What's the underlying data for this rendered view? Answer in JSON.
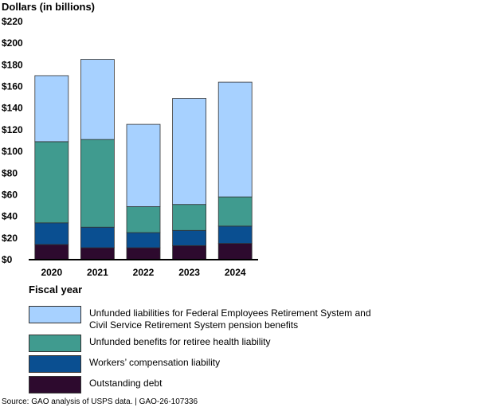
{
  "chart_data": {
    "type": "bar",
    "stacked": true,
    "ylabel": "Dollars (in billions)",
    "xlabel": "Fiscal year",
    "ylim": [
      0,
      220
    ],
    "yticks": [
      0,
      20,
      40,
      60,
      80,
      100,
      120,
      140,
      160,
      180,
      200,
      220
    ],
    "ytick_labels": [
      "$0",
      "$20",
      "$40",
      "$60",
      "$80",
      "$100",
      "$120",
      "$140",
      "$160",
      "$180",
      "$200",
      "$220"
    ],
    "categories": [
      "2020",
      "2021",
      "2022",
      "2023",
      "2024"
    ],
    "series": [
      {
        "name": "Outstanding debt",
        "color": "#2d0a2e",
        "values": [
          14,
          11,
          11,
          13,
          15
        ]
      },
      {
        "name": "Workers’ compensation liability",
        "color": "#0a4f91",
        "values": [
          20,
          19,
          14,
          14,
          16
        ]
      },
      {
        "name": "Unfunded benefits for retiree health liability",
        "color": "#409b8f",
        "values": [
          75,
          81,
          24,
          24,
          27
        ]
      },
      {
        "name": "Unfunded liabilities for Federal Employees Retirement System and Civil Service Retirement System pension benefits",
        "color": "#a7d1ff",
        "values": [
          61,
          74,
          76,
          98,
          106
        ]
      }
    ],
    "grid": false,
    "legend": "bottom"
  },
  "source": "Source: GAO analysis of USPS data.  |  GAO-26-107336"
}
